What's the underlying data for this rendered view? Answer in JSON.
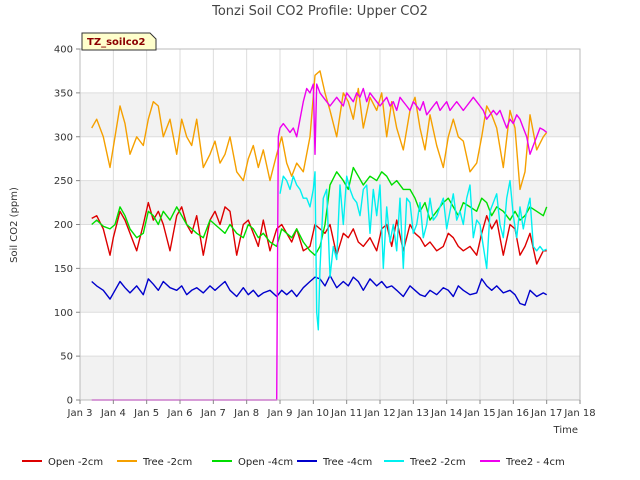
{
  "chart_data": {
    "type": "line",
    "title": "Tonzi Soil CO2 Profile: Upper CO2",
    "xlabel": "Time",
    "ylabel": "Soil CO2 (ppm)",
    "ylim": [
      0,
      400
    ],
    "xlim": [
      3,
      18
    ],
    "yticks": [
      0,
      50,
      100,
      150,
      200,
      250,
      300,
      350,
      400
    ],
    "xticks": [
      {
        "v": 3,
        "label": "Jan 3"
      },
      {
        "v": 4,
        "label": "Jan 4"
      },
      {
        "v": 5,
        "label": "Jan 5"
      },
      {
        "v": 6,
        "label": "Jan 6"
      },
      {
        "v": 7,
        "label": "Jan 7"
      },
      {
        "v": 8,
        "label": "Jan 8"
      },
      {
        "v": 9,
        "label": "Jan 9"
      },
      {
        "v": 10,
        "label": "Jan 10"
      },
      {
        "v": 11,
        "label": "Jan 11"
      },
      {
        "v": 12,
        "label": "Jan 12"
      },
      {
        "v": 13,
        "label": "Jan 13"
      },
      {
        "v": 14,
        "label": "Jan 14"
      },
      {
        "v": 15,
        "label": "Jan 15"
      },
      {
        "v": 16,
        "label": "Jan 16"
      },
      {
        "v": 17,
        "label": "Jan 17"
      },
      {
        "v": 18,
        "label": "Jan 18"
      }
    ],
    "grid": true,
    "legend_position": "bottom",
    "tag": "TZ_soilco2",
    "series": [
      {
        "name": "Open -2cm",
        "color": "#dd0000",
        "x": [
          3.35,
          3.5,
          3.7,
          3.9,
          4.0,
          4.2,
          4.35,
          4.5,
          4.7,
          4.9,
          5.05,
          5.2,
          5.35,
          5.5,
          5.7,
          5.9,
          6.05,
          6.2,
          6.35,
          6.5,
          6.7,
          6.9,
          7.05,
          7.2,
          7.35,
          7.5,
          7.7,
          7.9,
          8.05,
          8.2,
          8.35,
          8.5,
          8.7,
          8.9,
          9.05,
          9.2,
          9.35,
          9.5,
          9.7,
          9.9,
          10.05,
          10.2,
          10.35,
          10.5,
          10.7,
          10.9,
          11.05,
          11.2,
          11.35,
          11.5,
          11.7,
          11.9,
          12.05,
          12.2,
          12.35,
          12.5,
          12.7,
          12.9,
          13.05,
          13.2,
          13.35,
          13.5,
          13.7,
          13.9,
          14.05,
          14.2,
          14.35,
          14.5,
          14.7,
          14.9,
          15.05,
          15.2,
          15.35,
          15.5,
          15.7,
          15.9,
          16.05,
          16.2,
          16.35,
          16.5,
          16.7,
          16.9,
          17.0
        ],
        "y": [
          207,
          210,
          195,
          165,
          185,
          215,
          205,
          190,
          170,
          200,
          225,
          205,
          215,
          200,
          170,
          210,
          220,
          200,
          190,
          210,
          165,
          205,
          215,
          200,
          220,
          215,
          165,
          200,
          205,
          190,
          175,
          205,
          170,
          195,
          200,
          190,
          180,
          195,
          170,
          175,
          200,
          195,
          190,
          200,
          165,
          190,
          185,
          195,
          180,
          175,
          185,
          170,
          195,
          200,
          175,
          205,
          170,
          200,
          190,
          185,
          175,
          180,
          170,
          175,
          190,
          185,
          175,
          170,
          175,
          165,
          190,
          210,
          195,
          205,
          165,
          200,
          195,
          165,
          175,
          190,
          155,
          170,
          170
        ]
      },
      {
        "name": "Tree -2cm",
        "color": "#f5a000",
        "x": [
          3.35,
          3.5,
          3.7,
          3.9,
          4.05,
          4.2,
          4.35,
          4.5,
          4.7,
          4.9,
          5.05,
          5.2,
          5.35,
          5.5,
          5.7,
          5.9,
          6.05,
          6.2,
          6.35,
          6.5,
          6.7,
          6.9,
          7.05,
          7.2,
          7.35,
          7.5,
          7.7,
          7.9,
          8.05,
          8.2,
          8.35,
          8.5,
          8.7,
          8.9,
          9.05,
          9.2,
          9.35,
          9.5,
          9.7,
          9.9,
          10.05,
          10.2,
          10.35,
          10.5,
          10.7,
          10.9,
          11.05,
          11.2,
          11.35,
          11.5,
          11.7,
          11.9,
          12.05,
          12.2,
          12.35,
          12.5,
          12.7,
          12.9,
          13.05,
          13.2,
          13.35,
          13.5,
          13.7,
          13.9,
          14.05,
          14.2,
          14.35,
          14.5,
          14.7,
          14.9,
          15.05,
          15.2,
          15.35,
          15.5,
          15.7,
          15.9,
          16.05,
          16.2,
          16.35,
          16.5,
          16.7,
          16.9,
          17.0
        ],
        "y": [
          310,
          320,
          300,
          265,
          300,
          335,
          315,
          280,
          300,
          290,
          320,
          340,
          335,
          300,
          320,
          280,
          320,
          300,
          290,
          320,
          265,
          280,
          295,
          270,
          280,
          300,
          260,
          250,
          275,
          290,
          265,
          285,
          250,
          280,
          300,
          270,
          255,
          270,
          260,
          300,
          370,
          375,
          350,
          330,
          300,
          350,
          340,
          320,
          355,
          310,
          345,
          330,
          350,
          300,
          340,
          310,
          285,
          330,
          345,
          310,
          285,
          325,
          290,
          265,
          300,
          320,
          300,
          295,
          260,
          270,
          300,
          335,
          325,
          310,
          265,
          330,
          310,
          240,
          260,
          325,
          285,
          300,
          305
        ]
      },
      {
        "name": "Open -4cm",
        "color": "#00dd00",
        "x": [
          3.35,
          3.5,
          3.7,
          3.9,
          4.05,
          4.2,
          4.35,
          4.5,
          4.7,
          4.9,
          5.05,
          5.2,
          5.35,
          5.5,
          5.7,
          5.9,
          6.05,
          6.2,
          6.35,
          6.5,
          6.7,
          6.9,
          7.05,
          7.2,
          7.35,
          7.5,
          7.7,
          7.9,
          8.05,
          8.2,
          8.35,
          8.5,
          8.7,
          8.9,
          9.05,
          9.2,
          9.35,
          9.5,
          9.7,
          9.9,
          10.05,
          10.2,
          10.35,
          10.5,
          10.7,
          10.9,
          11.05,
          11.2,
          11.35,
          11.5,
          11.7,
          11.9,
          12.05,
          12.2,
          12.35,
          12.5,
          12.7,
          12.9,
          13.05,
          13.2,
          13.35,
          13.5,
          13.7,
          13.9,
          14.05,
          14.2,
          14.35,
          14.5,
          14.7,
          14.9,
          15.05,
          15.2,
          15.35,
          15.5,
          15.7,
          15.9,
          16.05,
          16.2,
          16.35,
          16.5,
          16.7,
          16.9,
          17.0
        ],
        "y": [
          200,
          205,
          198,
          195,
          200,
          220,
          210,
          195,
          185,
          190,
          215,
          210,
          200,
          215,
          205,
          220,
          210,
          200,
          195,
          190,
          185,
          205,
          200,
          195,
          190,
          200,
          190,
          185,
          200,
          195,
          185,
          190,
          180,
          175,
          195,
          190,
          185,
          195,
          180,
          170,
          165,
          175,
          200,
          245,
          260,
          250,
          240,
          265,
          255,
          245,
          255,
          250,
          260,
          255,
          245,
          250,
          240,
          240,
          230,
          215,
          225,
          205,
          215,
          225,
          230,
          220,
          210,
          225,
          220,
          215,
          230,
          225,
          210,
          220,
          215,
          205,
          215,
          205,
          210,
          220,
          215,
          210,
          220
        ]
      },
      {
        "name": "Tree -4cm",
        "color": "#0000cc",
        "x": [
          3.35,
          3.5,
          3.7,
          3.9,
          4.05,
          4.2,
          4.35,
          4.5,
          4.7,
          4.9,
          5.05,
          5.2,
          5.35,
          5.5,
          5.7,
          5.9,
          6.05,
          6.2,
          6.35,
          6.5,
          6.7,
          6.9,
          7.05,
          7.2,
          7.35,
          7.5,
          7.7,
          7.9,
          8.05,
          8.2,
          8.35,
          8.5,
          8.7,
          8.9,
          9.05,
          9.2,
          9.35,
          9.5,
          9.7,
          9.9,
          10.05,
          10.2,
          10.35,
          10.5,
          10.7,
          10.9,
          11.05,
          11.2,
          11.35,
          11.5,
          11.7,
          11.9,
          12.05,
          12.2,
          12.35,
          12.5,
          12.7,
          12.9,
          13.05,
          13.2,
          13.35,
          13.5,
          13.7,
          13.9,
          14.05,
          14.2,
          14.35,
          14.5,
          14.7,
          14.9,
          15.05,
          15.2,
          15.35,
          15.5,
          15.7,
          15.9,
          16.05,
          16.2,
          16.35,
          16.5,
          16.7,
          16.9,
          17.0
        ],
        "y": [
          135,
          130,
          125,
          115,
          125,
          135,
          128,
          122,
          130,
          120,
          138,
          132,
          125,
          135,
          128,
          125,
          130,
          120,
          125,
          128,
          122,
          130,
          125,
          130,
          135,
          125,
          118,
          128,
          120,
          125,
          118,
          122,
          125,
          118,
          125,
          120,
          125,
          118,
          128,
          135,
          140,
          138,
          130,
          142,
          128,
          135,
          130,
          140,
          135,
          125,
          138,
          130,
          135,
          128,
          130,
          125,
          118,
          130,
          125,
          120,
          118,
          125,
          120,
          128,
          125,
          118,
          130,
          125,
          120,
          122,
          138,
          130,
          125,
          130,
          122,
          125,
          120,
          110,
          108,
          125,
          118,
          122,
          120
        ]
      },
      {
        "name": "Tree2 -2cm",
        "color": "#00f0f0",
        "x": [
          9.0,
          9.1,
          9.2,
          9.3,
          9.4,
          9.5,
          9.6,
          9.7,
          9.8,
          9.9,
          10.0,
          10.05,
          10.1,
          10.15,
          10.2,
          10.3,
          10.4,
          10.5,
          10.6,
          10.7,
          10.8,
          10.9,
          11.0,
          11.1,
          11.2,
          11.3,
          11.4,
          11.5,
          11.6,
          11.7,
          11.8,
          11.9,
          12.0,
          12.1,
          12.2,
          12.3,
          12.4,
          12.5,
          12.6,
          12.7,
          12.8,
          12.9,
          13.0,
          13.1,
          13.2,
          13.3,
          13.4,
          13.5,
          13.6,
          13.7,
          13.8,
          13.9,
          14.0,
          14.1,
          14.2,
          14.3,
          14.4,
          14.5,
          14.6,
          14.7,
          14.8,
          14.9,
          15.0,
          15.1,
          15.2,
          15.3,
          15.4,
          15.5,
          15.6,
          15.7,
          15.8,
          15.9,
          16.0,
          16.1,
          16.2,
          16.3,
          16.4,
          16.5,
          16.6,
          16.7,
          16.8,
          16.9,
          17.0
        ],
        "y": [
          235,
          255,
          250,
          240,
          255,
          245,
          240,
          230,
          230,
          220,
          240,
          260,
          100,
          80,
          150,
          230,
          240,
          140,
          175,
          160,
          245,
          200,
          255,
          240,
          230,
          225,
          210,
          240,
          245,
          190,
          240,
          210,
          245,
          150,
          220,
          180,
          200,
          170,
          230,
          150,
          230,
          225,
          190,
          200,
          225,
          185,
          200,
          230,
          205,
          210,
          220,
          230,
          195,
          215,
          235,
          205,
          215,
          200,
          230,
          245,
          185,
          205,
          200,
          175,
          150,
          215,
          225,
          235,
          200,
          185,
          230,
          250,
          210,
          185,
          220,
          195,
          215,
          230,
          175,
          170,
          175,
          170,
          172
        ]
      },
      {
        "name": "Tree2 - 4cm",
        "color": "#ee00ee",
        "x": [
          3.35,
          8.9,
          8.95,
          9.0,
          9.1,
          9.2,
          9.3,
          9.4,
          9.5,
          9.6,
          9.7,
          9.8,
          9.9,
          10.0,
          10.05,
          10.1,
          10.2,
          10.3,
          10.4,
          10.5,
          10.6,
          10.7,
          10.8,
          10.9,
          11.0,
          11.1,
          11.2,
          11.3,
          11.4,
          11.5,
          11.6,
          11.7,
          11.8,
          11.9,
          12.0,
          12.1,
          12.2,
          12.3,
          12.4,
          12.5,
          12.6,
          12.7,
          12.8,
          12.9,
          13.0,
          13.1,
          13.2,
          13.3,
          13.4,
          13.5,
          13.6,
          13.7,
          13.8,
          13.9,
          14.0,
          14.1,
          14.2,
          14.3,
          14.4,
          14.5,
          14.6,
          14.7,
          14.8,
          14.9,
          15.0,
          15.1,
          15.2,
          15.3,
          15.4,
          15.5,
          15.6,
          15.7,
          15.8,
          15.9,
          16.0,
          16.1,
          16.2,
          16.3,
          16.4,
          16.5,
          16.6,
          16.7,
          16.8,
          16.9,
          17.0
        ],
        "y": [
          0,
          0,
          300,
          310,
          315,
          310,
          305,
          310,
          300,
          320,
          340,
          355,
          350,
          360,
          280,
          360,
          350,
          345,
          340,
          335,
          340,
          345,
          340,
          335,
          350,
          345,
          340,
          350,
          345,
          355,
          340,
          350,
          345,
          340,
          335,
          340,
          345,
          335,
          340,
          330,
          345,
          340,
          335,
          330,
          340,
          335,
          330,
          340,
          325,
          330,
          335,
          340,
          330,
          335,
          340,
          330,
          335,
          340,
          335,
          330,
          335,
          340,
          345,
          340,
          335,
          330,
          320,
          325,
          330,
          325,
          330,
          320,
          310,
          320,
          315,
          325,
          320,
          310,
          300,
          280,
          290,
          300,
          310,
          308,
          305
        ]
      }
    ]
  }
}
